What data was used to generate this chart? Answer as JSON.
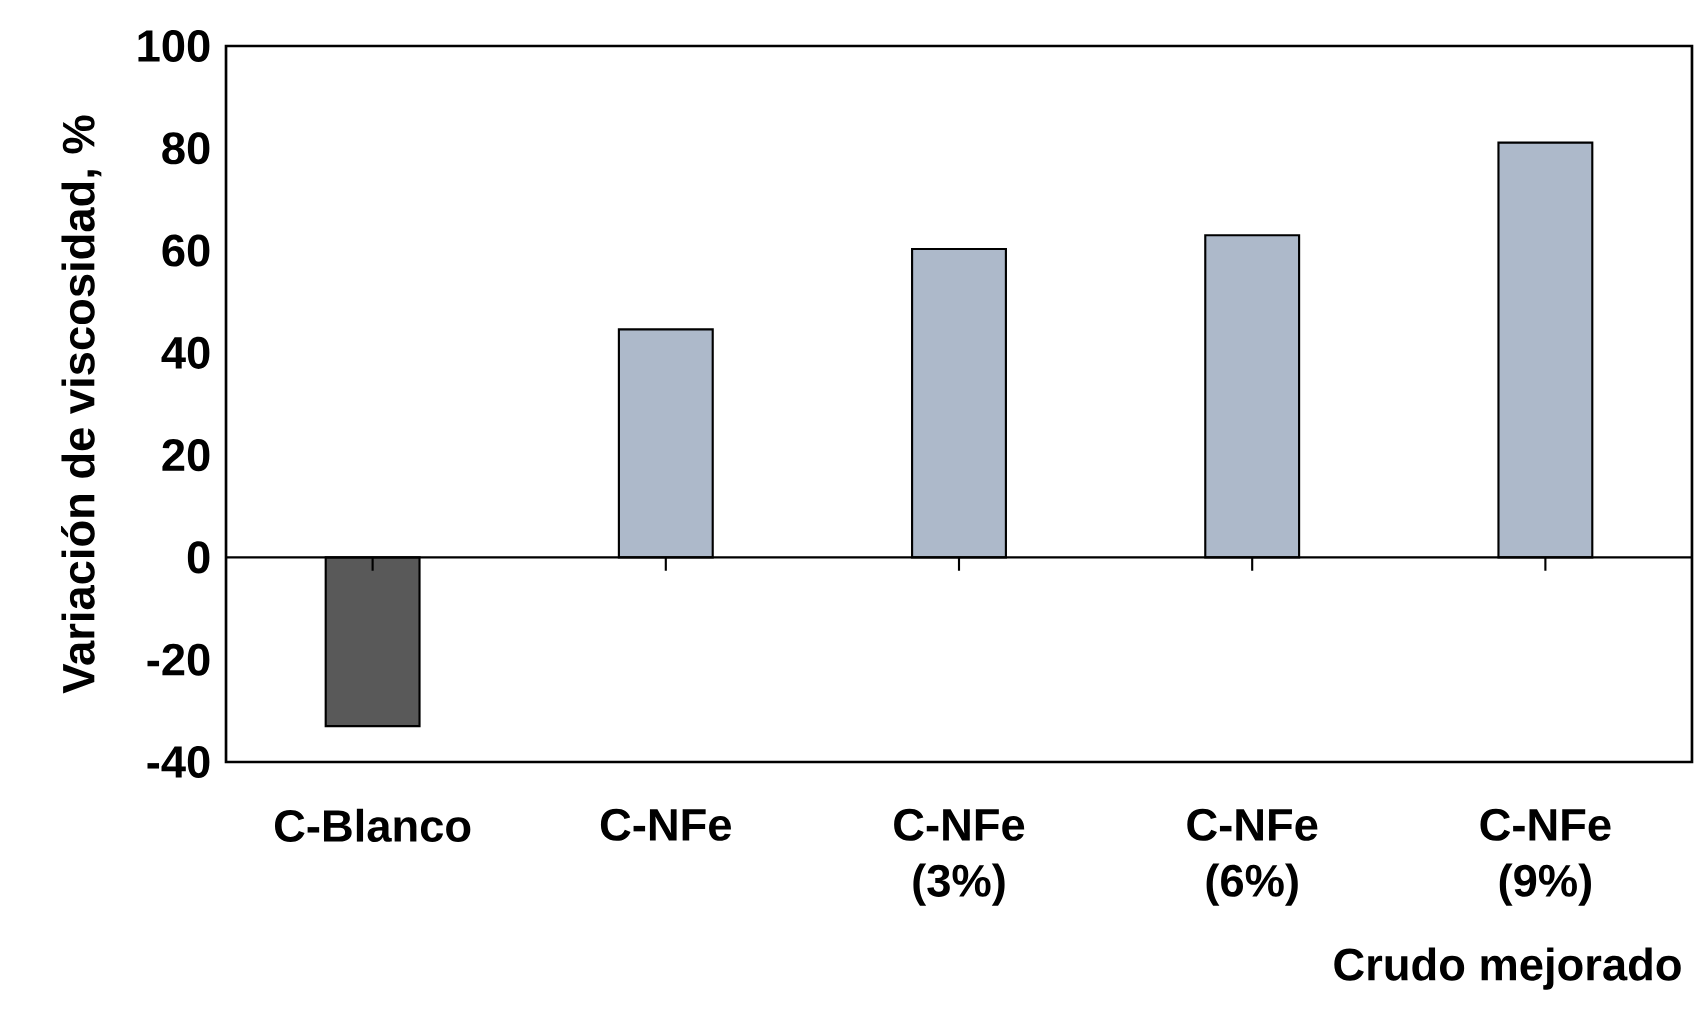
{
  "chart_data": {
    "type": "bar",
    "xlabel": "Crudo mejorado",
    "ylabel": "Variación de viscosidad, %",
    "categories": [
      "C-Blanco",
      "C-NFe",
      "C-NFe (3%)",
      "C-NFe (6%)",
      "C-NFe (9%)"
    ],
    "values": [
      -33,
      44.6,
      60.3,
      63,
      81.1
    ],
    "colors": [
      "#595959",
      "#adb9ca",
      "#adb9ca",
      "#adb9ca",
      "#adb9ca"
    ],
    "ylim": [
      -40,
      100
    ],
    "yticks": [
      -40,
      -20,
      0,
      20,
      40,
      60,
      80,
      100
    ]
  }
}
